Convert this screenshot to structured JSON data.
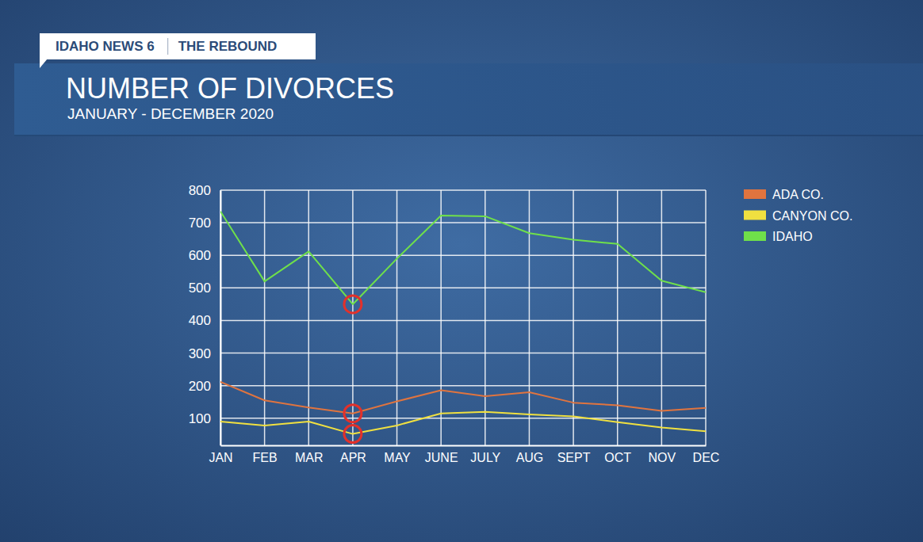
{
  "chart_data": {
    "type": "line",
    "title": "NUMBER OF DIVORCES",
    "subtitle": "JANUARY - DECEMBER 2020",
    "annotations": [
      "IDAHO NEWS 6",
      "THE REBOUND"
    ],
    "categories": [
      "JAN",
      "FEB",
      "MAR",
      "APR",
      "MAY",
      "JUNE",
      "JULY",
      "AUG",
      "SEPT",
      "OCT",
      "NOV",
      "DEC"
    ],
    "series": [
      {
        "name": "ADA CO.",
        "color": "#e0743f",
        "values": [
          212,
          155,
          133,
          115,
          152,
          186,
          168,
          180,
          148,
          140,
          123,
          132
        ]
      },
      {
        "name": "CANYON CO.",
        "color": "#f0e040",
        "values": [
          90,
          78,
          90,
          52,
          78,
          115,
          120,
          112,
          106,
          88,
          72,
          60
        ]
      },
      {
        "name": "IDAHO",
        "color": "#6fe04a",
        "values": [
          735,
          520,
          612,
          450,
          590,
          722,
          720,
          668,
          648,
          635,
          522,
          487
        ]
      }
    ],
    "ylim": [
      17,
      800
    ],
    "yticks": [
      100,
      200,
      300,
      400,
      500,
      600,
      700,
      800
    ],
    "grid": true,
    "legend": "right"
  }
}
